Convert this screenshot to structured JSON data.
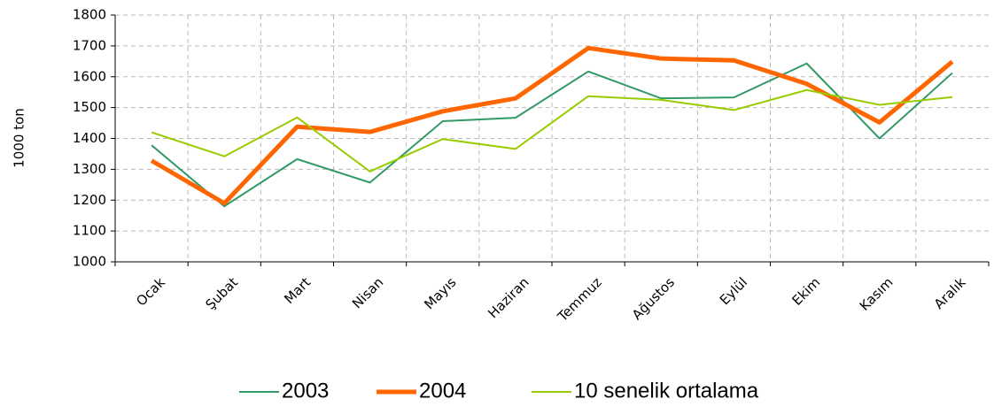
{
  "chart_data": {
    "type": "line",
    "y_label": "1000 ton",
    "categories": [
      "Ocak",
      "Şubat",
      "Mart",
      "Nisan",
      "Mayıs",
      "Haziran",
      "Temmuz",
      "Ağustos",
      "Eylül",
      "Ekim",
      "Kasım",
      "Aralık"
    ],
    "series": [
      {
        "name": "2003",
        "color": "#339966",
        "width": 2,
        "values": [
          1378,
          1180,
          1333,
          1257,
          1456,
          1467,
          1617,
          1530,
          1533,
          1643,
          1400,
          1612
        ]
      },
      {
        "name": "2004",
        "color": "#ff6600",
        "width": 5,
        "values": [
          1328,
          1190,
          1438,
          1421,
          1488,
          1530,
          1693,
          1659,
          1653,
          1577,
          1452,
          1649
        ]
      },
      {
        "name": "10 senelik ortalama",
        "color": "#99cc00",
        "width": 2,
        "values": [
          1420,
          1342,
          1468,
          1293,
          1398,
          1366,
          1537,
          1525,
          1492,
          1557,
          1509,
          1534
        ]
      }
    ],
    "ylim": [
      1000,
      1800
    ],
    "yticks": [
      1000,
      1100,
      1200,
      1300,
      1400,
      1500,
      1600,
      1700,
      1800
    ],
    "grid": true
  }
}
